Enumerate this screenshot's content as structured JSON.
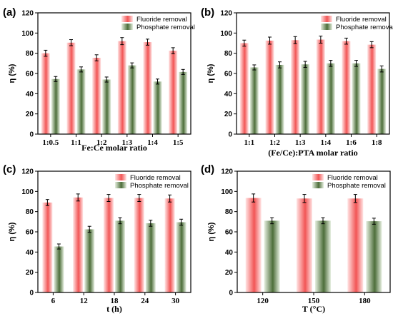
{
  "legend": {
    "fluoride": "Fluoride removal",
    "phosphate": "Phosphate removal"
  },
  "colors": {
    "fluoride_light": "#ffe4e4",
    "fluoride_dark": "#f25555",
    "phosphate_light": "#e6efe0",
    "phosphate_dark": "#4d6e3a",
    "axis": "#000000"
  },
  "chart_data": [
    {
      "panel": "(a)",
      "type": "bar",
      "xlabel": "Fe:Ce molar ratio",
      "ylabel": "η (%)",
      "ylim": [
        0,
        120
      ],
      "yticks": [
        0,
        20,
        40,
        60,
        80,
        100,
        120
      ],
      "categories": [
        "1:0.5",
        "1:1",
        "1:2",
        "1:3",
        "1:4",
        "1:5"
      ],
      "series": [
        {
          "name": "Fluoride removal",
          "values": [
            80,
            90.5,
            75.5,
            92,
            91,
            82.5
          ],
          "errors": [
            3,
            3,
            3,
            3.5,
            3,
            3
          ]
        },
        {
          "name": "Phosphate removal",
          "values": [
            54.5,
            64,
            54,
            68,
            52,
            61.5
          ],
          "errors": [
            2.5,
            2.5,
            2.5,
            2.5,
            2.5,
            2.5
          ]
        }
      ]
    },
    {
      "panel": "(b)",
      "type": "bar",
      "xlabel": "(Fe/Ce):PTA molar ratio",
      "ylabel": "η (%)",
      "ylim": [
        0,
        120
      ],
      "yticks": [
        0,
        20,
        40,
        60,
        80,
        100,
        120
      ],
      "categories": [
        "1:1",
        "1:2",
        "1:3",
        "1:4",
        "1:6",
        "1:8"
      ],
      "series": [
        {
          "name": "Fluoride removal",
          "values": [
            90,
            92.5,
            93,
            93.5,
            92,
            88.5
          ],
          "errors": [
            3,
            3.5,
            3.5,
            3.5,
            3,
            3
          ]
        },
        {
          "name": "Phosphate removal",
          "values": [
            66,
            68.5,
            69,
            70,
            70,
            64.5
          ],
          "errors": [
            2.5,
            3,
            3,
            3,
            3,
            3
          ]
        }
      ]
    },
    {
      "panel": "(c)",
      "type": "bar",
      "xlabel": "t (h)",
      "ylabel": "η (%)",
      "ylim": [
        0,
        120
      ],
      "yticks": [
        0,
        20,
        40,
        60,
        80,
        100,
        120
      ],
      "categories": [
        "6",
        "12",
        "18",
        "24",
        "30"
      ],
      "series": [
        {
          "name": "Fluoride removal",
          "values": [
            89,
            94,
            93.5,
            93.5,
            93
          ],
          "errors": [
            3,
            3.5,
            3.5,
            3.5,
            3.5
          ]
        },
        {
          "name": "Phosphate removal",
          "values": [
            45.5,
            62.5,
            71,
            68.5,
            69.5
          ],
          "errors": [
            2.5,
            3,
            3,
            3,
            3
          ]
        }
      ]
    },
    {
      "panel": "(d)",
      "type": "bar",
      "xlabel": "T (°C)",
      "ylabel": "η (%)",
      "ylim": [
        0,
        120
      ],
      "yticks": [
        0,
        20,
        40,
        60,
        80,
        100,
        120
      ],
      "categories": [
        "120",
        "150",
        "180"
      ],
      "series": [
        {
          "name": "Fluoride removal",
          "values": [
            93.5,
            93,
            93
          ],
          "errors": [
            4,
            4,
            4
          ]
        },
        {
          "name": "Phosphate removal",
          "values": [
            71,
            71,
            70.5
          ],
          "errors": [
            3,
            3,
            3
          ]
        }
      ]
    }
  ]
}
